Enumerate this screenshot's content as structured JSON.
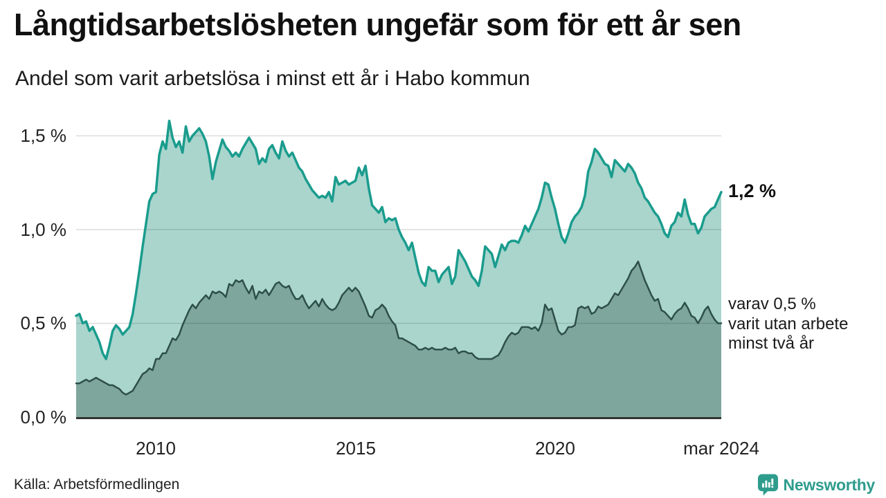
{
  "header": {
    "title": "Långtidsarbetslösheten ungefär som för ett år sen",
    "subtitle": "Andel som varit arbetslösa i minst ett år i Habo kommun"
  },
  "chart_data": {
    "type": "area",
    "unit": "%",
    "start_month": "2008-01",
    "end_month": "2024-03",
    "frequency": "monthly",
    "ylim": [
      0,
      1.5
    ],
    "grid": "horizontal",
    "legend_position": "none",
    "y_ticks": [
      {
        "label": "0,0 %",
        "value": 0
      },
      {
        "label": "0,5 %",
        "value": 0.5
      },
      {
        "label": "1,0 %",
        "value": 1.0
      },
      {
        "label": "1,5 %",
        "value": 1.5
      }
    ],
    "x_ticks": [
      {
        "label": "2010",
        "year": 2010
      },
      {
        "label": "2015",
        "year": 2015
      },
      {
        "label": "2020",
        "year": 2020
      },
      {
        "label": "mar 2024",
        "year": 2024.1667
      }
    ],
    "series": [
      {
        "name": "minst ett år",
        "line_color": "#1a9c8d",
        "fill_color": "#a9d5cd",
        "line_width": 3.5,
        "values": [
          0.54,
          0.55,
          0.5,
          0.51,
          0.46,
          0.48,
          0.44,
          0.4,
          0.34,
          0.31,
          0.38,
          0.46,
          0.49,
          0.47,
          0.44,
          0.46,
          0.48,
          0.55,
          0.66,
          0.78,
          0.91,
          1.03,
          1.15,
          1.19,
          1.2,
          1.4,
          1.47,
          1.43,
          1.58,
          1.49,
          1.44,
          1.47,
          1.41,
          1.55,
          1.47,
          1.5,
          1.52,
          1.54,
          1.51,
          1.47,
          1.39,
          1.27,
          1.36,
          1.42,
          1.48,
          1.44,
          1.42,
          1.39,
          1.41,
          1.39,
          1.43,
          1.46,
          1.49,
          1.46,
          1.43,
          1.35,
          1.38,
          1.36,
          1.43,
          1.45,
          1.41,
          1.38,
          1.47,
          1.42,
          1.39,
          1.41,
          1.37,
          1.33,
          1.31,
          1.27,
          1.24,
          1.21,
          1.19,
          1.17,
          1.18,
          1.17,
          1.2,
          1.15,
          1.28,
          1.24,
          1.25,
          1.26,
          1.24,
          1.25,
          1.26,
          1.33,
          1.29,
          1.34,
          1.22,
          1.13,
          1.11,
          1.09,
          1.12,
          1.04,
          1.06,
          1.05,
          1.06,
          1.0,
          0.96,
          0.93,
          0.89,
          0.93,
          0.85,
          0.77,
          0.72,
          0.7,
          0.8,
          0.78,
          0.78,
          0.72,
          0.76,
          0.78,
          0.8,
          0.71,
          0.75,
          0.89,
          0.86,
          0.83,
          0.79,
          0.75,
          0.73,
          0.7,
          0.78,
          0.91,
          0.89,
          0.87,
          0.8,
          0.86,
          0.92,
          0.89,
          0.93,
          0.94,
          0.94,
          0.93,
          0.97,
          1.02,
          0.99,
          1.03,
          1.07,
          1.11,
          1.17,
          1.25,
          1.24,
          1.17,
          1.11,
          1.03,
          0.96,
          0.93,
          0.98,
          1.04,
          1.07,
          1.09,
          1.12,
          1.18,
          1.31,
          1.36,
          1.43,
          1.41,
          1.38,
          1.35,
          1.34,
          1.28,
          1.37,
          1.35,
          1.33,
          1.31,
          1.35,
          1.33,
          1.3,
          1.25,
          1.22,
          1.17,
          1.15,
          1.12,
          1.09,
          1.07,
          1.03,
          0.98,
          0.96,
          1.02,
          1.04,
          1.09,
          1.07,
          1.16,
          1.08,
          1.03,
          1.03,
          0.98,
          1.01,
          1.07,
          1.09,
          1.11,
          1.12,
          1.16,
          1.2
        ]
      },
      {
        "name": "minst två år",
        "line_color": "#2e4f49",
        "fill_color": "#7ea69d",
        "line_width": 2.5,
        "values": [
          0.18,
          0.18,
          0.19,
          0.2,
          0.19,
          0.2,
          0.21,
          0.2,
          0.19,
          0.18,
          0.17,
          0.17,
          0.16,
          0.15,
          0.13,
          0.12,
          0.13,
          0.14,
          0.17,
          0.2,
          0.23,
          0.24,
          0.26,
          0.25,
          0.31,
          0.31,
          0.34,
          0.34,
          0.38,
          0.42,
          0.41,
          0.44,
          0.49,
          0.53,
          0.57,
          0.6,
          0.58,
          0.61,
          0.63,
          0.65,
          0.63,
          0.67,
          0.66,
          0.67,
          0.66,
          0.64,
          0.71,
          0.7,
          0.73,
          0.72,
          0.73,
          0.69,
          0.66,
          0.7,
          0.63,
          0.67,
          0.66,
          0.68,
          0.65,
          0.68,
          0.71,
          0.72,
          0.7,
          0.69,
          0.7,
          0.66,
          0.63,
          0.63,
          0.65,
          0.61,
          0.58,
          0.6,
          0.62,
          0.59,
          0.63,
          0.6,
          0.58,
          0.57,
          0.58,
          0.61,
          0.65,
          0.67,
          0.69,
          0.67,
          0.69,
          0.67,
          0.63,
          0.59,
          0.54,
          0.53,
          0.57,
          0.58,
          0.6,
          0.58,
          0.54,
          0.51,
          0.49,
          0.42,
          0.42,
          0.41,
          0.4,
          0.39,
          0.38,
          0.36,
          0.36,
          0.37,
          0.36,
          0.37,
          0.36,
          0.36,
          0.36,
          0.37,
          0.36,
          0.36,
          0.37,
          0.34,
          0.35,
          0.35,
          0.34,
          0.34,
          0.32,
          0.31,
          0.31,
          0.31,
          0.31,
          0.31,
          0.32,
          0.33,
          0.36,
          0.4,
          0.43,
          0.45,
          0.44,
          0.45,
          0.48,
          0.48,
          0.48,
          0.47,
          0.48,
          0.46,
          0.5,
          0.6,
          0.57,
          0.58,
          0.52,
          0.46,
          0.44,
          0.45,
          0.48,
          0.48,
          0.49,
          0.58,
          0.59,
          0.58,
          0.59,
          0.55,
          0.56,
          0.59,
          0.58,
          0.59,
          0.6,
          0.63,
          0.66,
          0.65,
          0.68,
          0.71,
          0.74,
          0.78,
          0.8,
          0.83,
          0.78,
          0.73,
          0.69,
          0.65,
          0.62,
          0.63,
          0.57,
          0.56,
          0.54,
          0.52,
          0.55,
          0.57,
          0.58,
          0.61,
          0.58,
          0.54,
          0.53,
          0.5,
          0.53,
          0.57,
          0.59,
          0.55,
          0.52,
          0.5,
          0.5
        ]
      }
    ],
    "annotations": {
      "series1_end_label": "1,2 %",
      "series2_end_label_lines": [
        "varav 0,5 %",
        "varit utan arbete",
        "minst två år"
      ]
    }
  },
  "footer": {
    "source": "Källa: Arbetsförmedlingen",
    "brand": "Newsworthy",
    "brand_color": "#2e9c8d"
  }
}
